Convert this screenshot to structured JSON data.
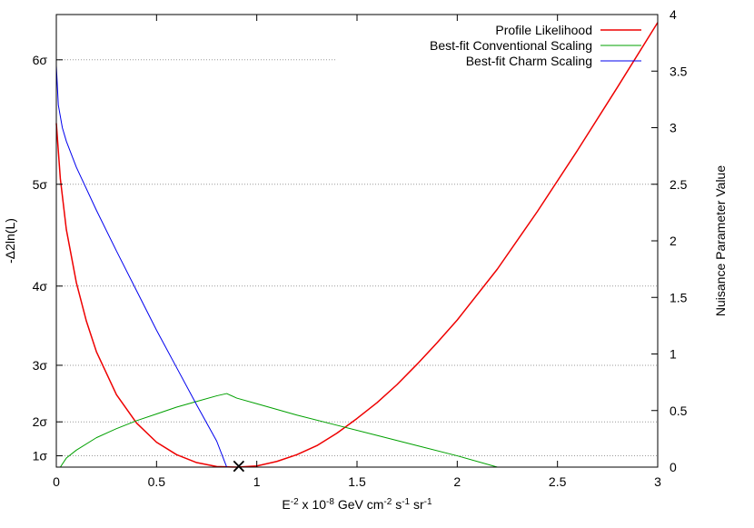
{
  "chart_data": {
    "type": "line",
    "xlabel_parts": [
      {
        "t": "E",
        "sup": false
      },
      {
        "t": "-2",
        "sup": true
      },
      {
        "t": " x 10",
        "sup": false
      },
      {
        "t": "-8",
        "sup": true
      },
      {
        "t": " GeV cm",
        "sup": false
      },
      {
        "t": "-2",
        "sup": true
      },
      {
        "t": " s",
        "sup": false
      },
      {
        "t": "-1",
        "sup": true
      },
      {
        "t": " sr",
        "sup": false
      },
      {
        "t": "-1",
        "sup": true
      }
    ],
    "ylabel_left": "-Δ2ln(L)",
    "ylabel_right": "Nuisance Parameter Value",
    "xlim": [
      0,
      3
    ],
    "ylim_left": [
      0,
      40
    ],
    "ylim_right": [
      0,
      4
    ],
    "x_ticks": [
      {
        "v": 0,
        "label": "0"
      },
      {
        "v": 0.5,
        "label": "0.5"
      },
      {
        "v": 1,
        "label": "1"
      },
      {
        "v": 1.5,
        "label": "1.5"
      },
      {
        "v": 2,
        "label": "2"
      },
      {
        "v": 2.5,
        "label": "2.5"
      },
      {
        "v": 3,
        "label": "3"
      }
    ],
    "y_ticks_left": [
      {
        "v": 1,
        "label": "1σ"
      },
      {
        "v": 4,
        "label": "2σ"
      },
      {
        "v": 9,
        "label": "3σ"
      },
      {
        "v": 16,
        "label": "4σ"
      },
      {
        "v": 25,
        "label": "5σ"
      },
      {
        "v": 36,
        "label": "6σ"
      }
    ],
    "y_ticks_right": [
      {
        "v": 0,
        "label": "0"
      },
      {
        "v": 0.5,
        "label": "0.5"
      },
      {
        "v": 1,
        "label": "1"
      },
      {
        "v": 1.5,
        "label": "1.5"
      },
      {
        "v": 2,
        "label": "2"
      },
      {
        "v": 2.5,
        "label": "2.5"
      },
      {
        "v": 3,
        "label": "3"
      },
      {
        "v": 3.5,
        "label": "3.5"
      },
      {
        "v": 4,
        "label": "4"
      }
    ],
    "gridlines_left": [
      1,
      4,
      9,
      16,
      25,
      36
    ],
    "gridline_6sigma_x_end": 1.4,
    "legend_position": "top-right",
    "series": [
      {
        "name": "Profile Likelihood",
        "color": "#ee0000",
        "axis": "left",
        "x": [
          0,
          0.02,
          0.05,
          0.1,
          0.15,
          0.2,
          0.3,
          0.4,
          0.5,
          0.6,
          0.7,
          0.8,
          0.9,
          1.0,
          1.1,
          1.2,
          1.3,
          1.4,
          1.5,
          1.6,
          1.7,
          1.8,
          1.9,
          2.0,
          2.2,
          2.4,
          2.6,
          2.8,
          3.0
        ],
        "y": [
          30.4,
          25.5,
          21.0,
          16.3,
          12.9,
          10.2,
          6.4,
          3.9,
          2.2,
          1.1,
          0.4,
          0.05,
          0.0,
          0.1,
          0.5,
          1.1,
          1.9,
          3.0,
          4.3,
          5.7,
          7.3,
          9.1,
          11.0,
          13.0,
          17.5,
          22.6,
          28.0,
          33.6,
          39.3
        ]
      },
      {
        "name": "Best-fit Conventional Scaling",
        "color": "#00a000",
        "axis": "right",
        "x": [
          0.02,
          0.05,
          0.1,
          0.2,
          0.3,
          0.4,
          0.5,
          0.6,
          0.7,
          0.8,
          0.85,
          0.9,
          1.0,
          1.2,
          1.4,
          1.6,
          1.8,
          2.0,
          2.2
        ],
        "y": [
          0.0,
          0.08,
          0.15,
          0.26,
          0.34,
          0.41,
          0.47,
          0.53,
          0.58,
          0.63,
          0.65,
          0.61,
          0.56,
          0.46,
          0.37,
          0.28,
          0.19,
          0.1,
          0.0
        ]
      },
      {
        "name": "Best-fit Charm Scaling",
        "color": "#0000ee",
        "axis": "right",
        "x": [
          0,
          0.01,
          0.03,
          0.05,
          0.1,
          0.2,
          0.3,
          0.4,
          0.5,
          0.6,
          0.7,
          0.8,
          0.85
        ],
        "y": [
          3.55,
          3.2,
          3.0,
          2.88,
          2.65,
          2.27,
          1.91,
          1.56,
          1.21,
          0.88,
          0.55,
          0.23,
          0.0
        ]
      }
    ],
    "best_fit_marker": {
      "x": 0.91,
      "y": 0,
      "symbol": "×"
    }
  }
}
